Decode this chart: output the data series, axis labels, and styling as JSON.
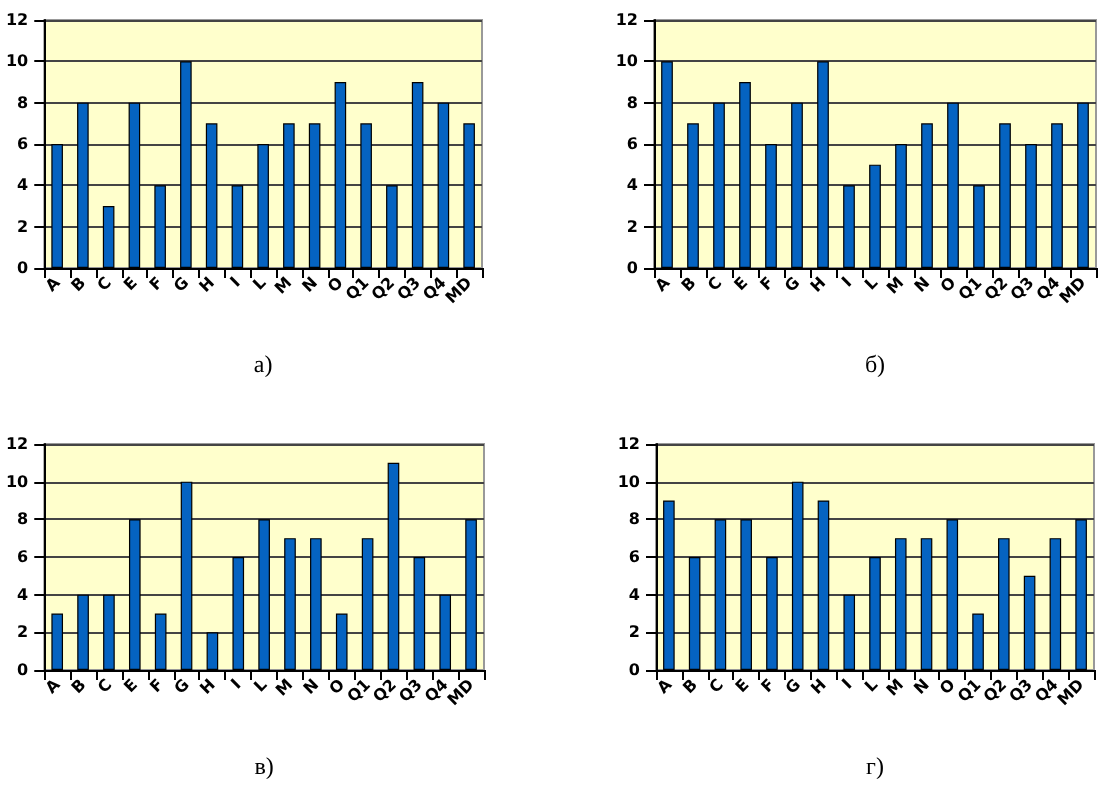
{
  "chart_data": [
    {
      "type": "bar",
      "xlabel": "а)",
      "categories": [
        "A",
        "B",
        "C",
        "E",
        "F",
        "G",
        "H",
        "I",
        "L",
        "M",
        "N",
        "O",
        "Q1",
        "Q2",
        "Q3",
        "Q4",
        "MD"
      ],
      "values": [
        6,
        8,
        3,
        8,
        4,
        10,
        7,
        4,
        6,
        7,
        7,
        9,
        7,
        4,
        9,
        8,
        7
      ],
      "color": "#0563c1",
      "ylim": [
        0,
        12
      ],
      "yticks": [
        0,
        2,
        4,
        6,
        8,
        10,
        12
      ],
      "grid": "y"
    },
    {
      "type": "bar",
      "xlabel": "б)",
      "categories": [
        "A",
        "B",
        "C",
        "E",
        "F",
        "G",
        "H",
        "I",
        "L",
        "M",
        "N",
        "O",
        "Q1",
        "Q2",
        "Q3",
        "Q4",
        "MD"
      ],
      "values": [
        10,
        7,
        8,
        9,
        6,
        8,
        10,
        4,
        5,
        6,
        7,
        8,
        4,
        7,
        6,
        7,
        8
      ],
      "color": "#0563c1",
      "ylim": [
        0,
        12
      ],
      "yticks": [
        0,
        2,
        4,
        6,
        8,
        10,
        12
      ],
      "grid": "y"
    },
    {
      "type": "bar",
      "xlabel": "в)",
      "categories": [
        "A",
        "B",
        "C",
        "E",
        "F",
        "G",
        "H",
        "I",
        "L",
        "M",
        "N",
        "O",
        "Q1",
        "Q2",
        "Q3",
        "Q4",
        "MD"
      ],
      "values": [
        3,
        4,
        4,
        8,
        3,
        10,
        2,
        6,
        8,
        7,
        7,
        3,
        7,
        11,
        6,
        4,
        8
      ],
      "color": "#0563c1",
      "ylim": [
        0,
        12
      ],
      "yticks": [
        0,
        2,
        4,
        6,
        8,
        10,
        12
      ],
      "grid": "y"
    },
    {
      "type": "bar",
      "xlabel": "г)",
      "categories": [
        "A",
        "B",
        "C",
        "E",
        "F",
        "G",
        "H",
        "I",
        "L",
        "M",
        "N",
        "O",
        "Q1",
        "Q2",
        "Q3",
        "Q4",
        "MD"
      ],
      "values": [
        9,
        6,
        8,
        8,
        6,
        10,
        9,
        4,
        6,
        7,
        7,
        8,
        3,
        7,
        5,
        7,
        8
      ],
      "color": "#0563c1",
      "ylim": [
        0,
        12
      ],
      "yticks": [
        0,
        2,
        4,
        6,
        8,
        10,
        12
      ],
      "grid": "y"
    }
  ]
}
